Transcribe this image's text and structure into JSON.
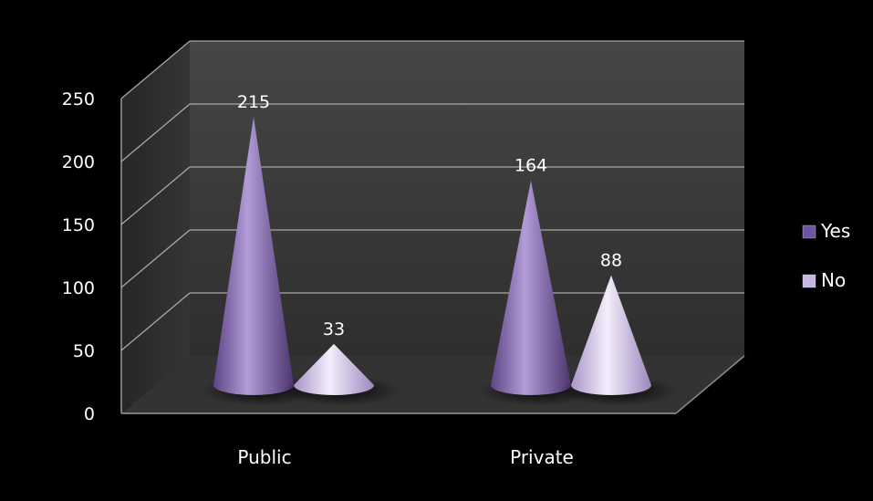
{
  "chart_data": {
    "type": "bar",
    "categories": [
      "Public",
      "Private"
    ],
    "series": [
      {
        "name": "Yes",
        "values": [
          215,
          164
        ]
      },
      {
        "name": "No",
        "values": [
          33,
          88
        ]
      }
    ],
    "ylim": [
      0,
      250
    ],
    "yticks": [
      "0",
      "50",
      "100",
      "150",
      "200",
      "250"
    ],
    "grid": true,
    "legend": "right",
    "shape": "cone",
    "colors": {
      "Yes": "#8a6bb3",
      "No": "#d8cbec",
      "background": "#000000",
      "wall": "#3a3a3a"
    }
  }
}
